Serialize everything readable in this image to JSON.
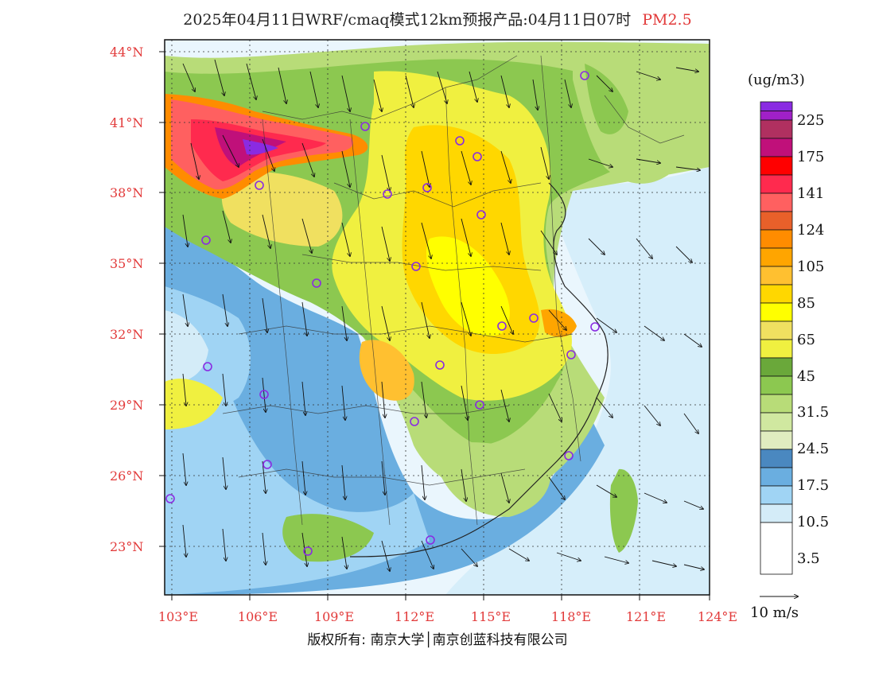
{
  "title": {
    "main": "2025年04月11日WRF/cmaq模式12km预报产品:04月11日07时",
    "pollutant": "PM2.5"
  },
  "lat_labels": [
    "44°N",
    "41°N",
    "38°N",
    "35°N",
    "32°N",
    "29°N",
    "26°N",
    "23°N"
  ],
  "lon_labels": [
    "103°E",
    "106°E",
    "109°E",
    "112°E",
    "115°E",
    "118°E",
    "121°E",
    "124°E"
  ],
  "legend": {
    "unit": "(ug/m3)",
    "labels": [
      "225",
      "175",
      "141",
      "124",
      "105",
      "85",
      "65",
      "45",
      "31.5",
      "24.5",
      "17.5",
      "10.5",
      "3.5"
    ],
    "colors": [
      "#8a2be2",
      "#a020c8",
      "#b03060",
      "#c0107a",
      "#ff0000",
      "#ff2a4e",
      "#ff6060",
      "#e8602a",
      "#ff8c00",
      "#ffa500",
      "#ffc030",
      "#ffd700",
      "#ffff00",
      "#f0e060",
      "#f0f040",
      "#6aa83a",
      "#8cc850",
      "#b8dc78",
      "#d0e8a0",
      "#e0ecc0",
      "#4a88c0",
      "#6aaee0",
      "#a0d4f4",
      "#d4ecf8",
      "#ffffff"
    ]
  },
  "wind_scale": "10 m/s",
  "footer": "版权所有: 南京大学│南京创蓝科技有限公司"
}
